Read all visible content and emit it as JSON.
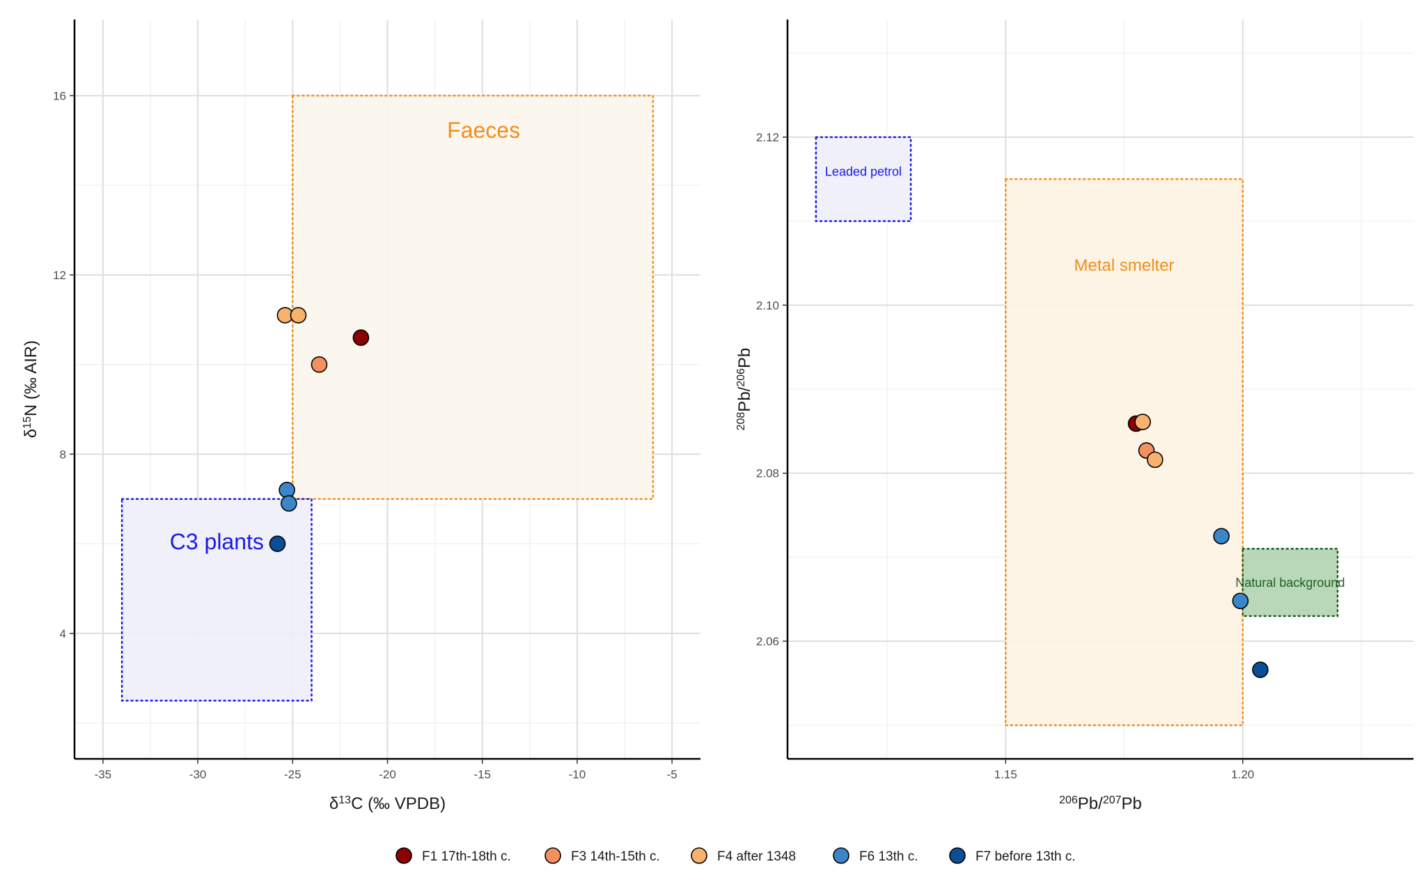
{
  "chart_data": [
    {
      "type": "scatter",
      "xlabel": "δ13C (‰ VPDB)",
      "ylabel": "δ15N (‰ AIR)",
      "xlim": [
        -36.5,
        -3.5
      ],
      "ylim": [
        1.2,
        17.7
      ],
      "x_ticks": [
        -35,
        -30,
        -25,
        -20,
        -15,
        -10,
        -5
      ],
      "x_tick_labels": [
        "-35",
        "-30",
        "-25",
        "-20",
        "-15",
        "-10",
        "-5"
      ],
      "y_ticks": [
        4,
        8,
        12,
        16
      ],
      "y_tick_labels": [
        "4",
        "8",
        "12",
        "16"
      ],
      "grid": true,
      "regions": [
        {
          "label": "Faeces",
          "x": [
            -25,
            -6
          ],
          "y": [
            7,
            16
          ],
          "color": "#F28E1C",
          "fill": "#FBF6EC",
          "style": "dotted"
        },
        {
          "label": "C3 plants",
          "x": [
            -34,
            -24
          ],
          "y": [
            2.5,
            7
          ],
          "color": "#1A1AE6",
          "fill": "#EEEEF9",
          "style": "dotted"
        }
      ],
      "points": [
        {
          "series": "F1 17th-18th c.",
          "x": -21.4,
          "y": 10.6
        },
        {
          "series": "F3 14th-15th c.",
          "x": -23.6,
          "y": 10.0
        },
        {
          "series": "F4 after 1348",
          "x": -25.4,
          "y": 11.1
        },
        {
          "series": "F4 after 1348",
          "x": -24.7,
          "y": 11.1
        },
        {
          "series": "F6 13th c.",
          "x": -25.3,
          "y": 7.2
        },
        {
          "series": "F6 13th c.",
          "x": -25.2,
          "y": 6.9
        },
        {
          "series": "F7 before 13th c.",
          "x": -25.8,
          "y": 6.0
        }
      ]
    },
    {
      "type": "scatter",
      "xlabel": "206Pb/207Pb",
      "ylabel": "208Pb/206Pb",
      "xlim": [
        1.104,
        1.236
      ],
      "ylim": [
        2.046,
        2.134
      ],
      "x_ticks": [
        1.15,
        1.2
      ],
      "x_tick_labels": [
        "1.15",
        "1.20"
      ],
      "y_ticks": [
        2.06,
        2.08,
        2.1,
        2.12
      ],
      "y_tick_labels": [
        "2.06",
        "2.08",
        "2.10",
        "2.12"
      ],
      "grid": true,
      "regions": [
        {
          "label": "Leaded petrol",
          "x": [
            1.11,
            1.13
          ],
          "y": [
            2.11,
            2.12
          ],
          "color": "#1A1AE6",
          "fill": "#EEEEF9",
          "style": "dotted"
        },
        {
          "label": "Metal smelter",
          "x": [
            1.15,
            1.2
          ],
          "y": [
            2.05,
            2.115
          ],
          "color": "#F28E1C",
          "fill": "#FDF3E2",
          "style": "dotted"
        },
        {
          "label": "Natural background",
          "x": [
            1.2,
            1.22
          ],
          "y": [
            2.063,
            2.071
          ],
          "color": "#1E5E1E",
          "fill": "#B1D4B1",
          "style": "dotted"
        }
      ],
      "points": [
        {
          "series": "F1 17th-18th c.",
          "x": 1.1775,
          "y": 2.0859
        },
        {
          "series": "F4 after 1348",
          "x": 1.1789,
          "y": 2.0861
        },
        {
          "series": "F3 14th-15th c.",
          "x": 1.1797,
          "y": 2.0827
        },
        {
          "series": "F4 after 1348",
          "x": 1.1815,
          "y": 2.0816
        },
        {
          "series": "F6 13th c.",
          "x": 1.1955,
          "y": 2.0725
        },
        {
          "series": "F6 13th c.",
          "x": 1.1995,
          "y": 2.0648
        },
        {
          "series": "F7 before 13th c.",
          "x": 1.2037,
          "y": 2.0566
        }
      ]
    }
  ],
  "legend": {
    "position": "bottom",
    "items": [
      {
        "label": "F1 17th-18th c.",
        "color": "#8B0000"
      },
      {
        "label": "F3 14th-15th c.",
        "color": "#F4905F"
      },
      {
        "label": "F4 after 1348",
        "color": "#F9B26E"
      },
      {
        "label": "F6 13th c.",
        "color": "#3A86C8"
      },
      {
        "label": "F7 before 13th c.",
        "color": "#0A4E96"
      }
    ]
  }
}
